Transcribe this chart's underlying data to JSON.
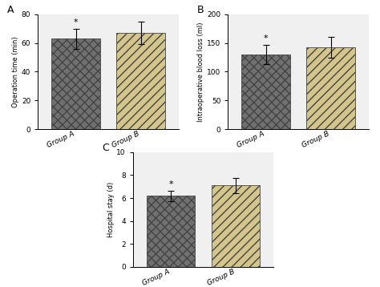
{
  "panel_A": {
    "label": "A",
    "categories": [
      "Group A",
      "Group B"
    ],
    "values": [
      63,
      67
    ],
    "errors": [
      7,
      8
    ],
    "ylabel": "Operation time (min)",
    "ylim": [
      0,
      80
    ],
    "yticks": [
      0,
      20,
      40,
      60,
      80
    ],
    "bar_colors": [
      "#707070",
      "#d4c68a"
    ],
    "star_bar": 0
  },
  "panel_B": {
    "label": "B",
    "categories": [
      "Group A",
      "Group B"
    ],
    "values": [
      130,
      143
    ],
    "errors": [
      17,
      18
    ],
    "ylabel": "Intraoperative blood loss (ml)",
    "ylim": [
      0,
      200
    ],
    "yticks": [
      0,
      50,
      100,
      150,
      200
    ],
    "bar_colors": [
      "#707070",
      "#d4c68a"
    ],
    "star_bar": 0
  },
  "panel_C": {
    "label": "C",
    "categories": [
      "Group A",
      "Group B"
    ],
    "values": [
      6.2,
      7.1
    ],
    "errors": [
      0.45,
      0.65
    ],
    "ylabel": "Hospital stay (d)",
    "ylim": [
      0,
      10
    ],
    "yticks": [
      0,
      2,
      4,
      6,
      8,
      10
    ],
    "bar_colors": [
      "#707070",
      "#d4c68a"
    ],
    "star_bar": 0
  },
  "hatch_dark": "xxx",
  "hatch_light": "///",
  "bg_color": "#f5f5f5"
}
